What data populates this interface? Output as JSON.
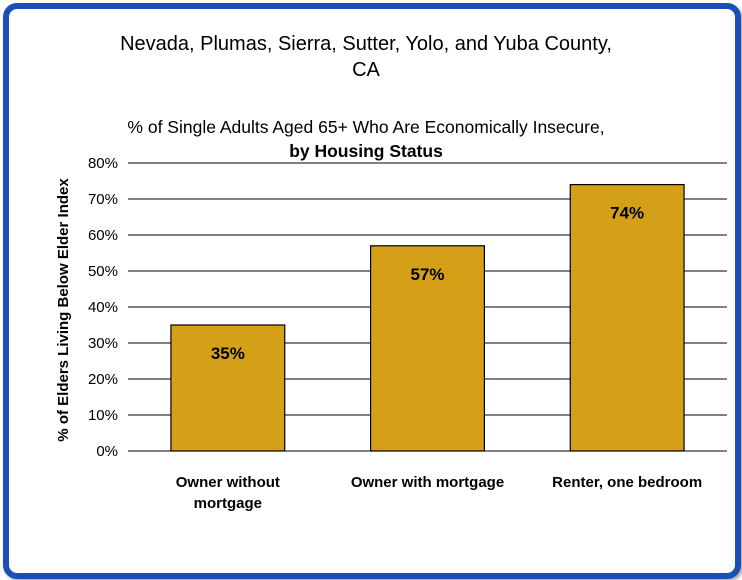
{
  "chart_data": {
    "type": "bar",
    "title_lines": [
      "Nevada, Plumas, Sierra, Sutter, Yolo, and Yuba County,",
      "CA"
    ],
    "subtitle_line1": "% of Single Adults Aged 65+ Who Are Economically Insecure,",
    "subtitle_line2": "by Housing Status",
    "ylabel": "% of  Elders Living Below  Elder Index",
    "xlabel": "",
    "categories": [
      [
        "Owner without",
        "mortgage"
      ],
      [
        "Owner with mortgage"
      ],
      [
        "Renter, one bedroom"
      ]
    ],
    "values": [
      35,
      57,
      74
    ],
    "data_labels": [
      "35%",
      "57%",
      "74%"
    ],
    "ylim": [
      0,
      80
    ],
    "yticks": [
      "0%",
      "10%",
      "20%",
      "30%",
      "40%",
      "50%",
      "60%",
      "70%",
      "80%"
    ],
    "grid": true,
    "legend": "none",
    "bar_color": "#d4a017",
    "frame_color": "#1a4fb8"
  }
}
